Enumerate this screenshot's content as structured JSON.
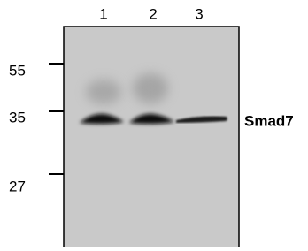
{
  "lanes": [
    "1",
    "2",
    "3"
  ],
  "markers": [
    "55",
    "35",
    "27"
  ],
  "band_label": "Smad7"
}
